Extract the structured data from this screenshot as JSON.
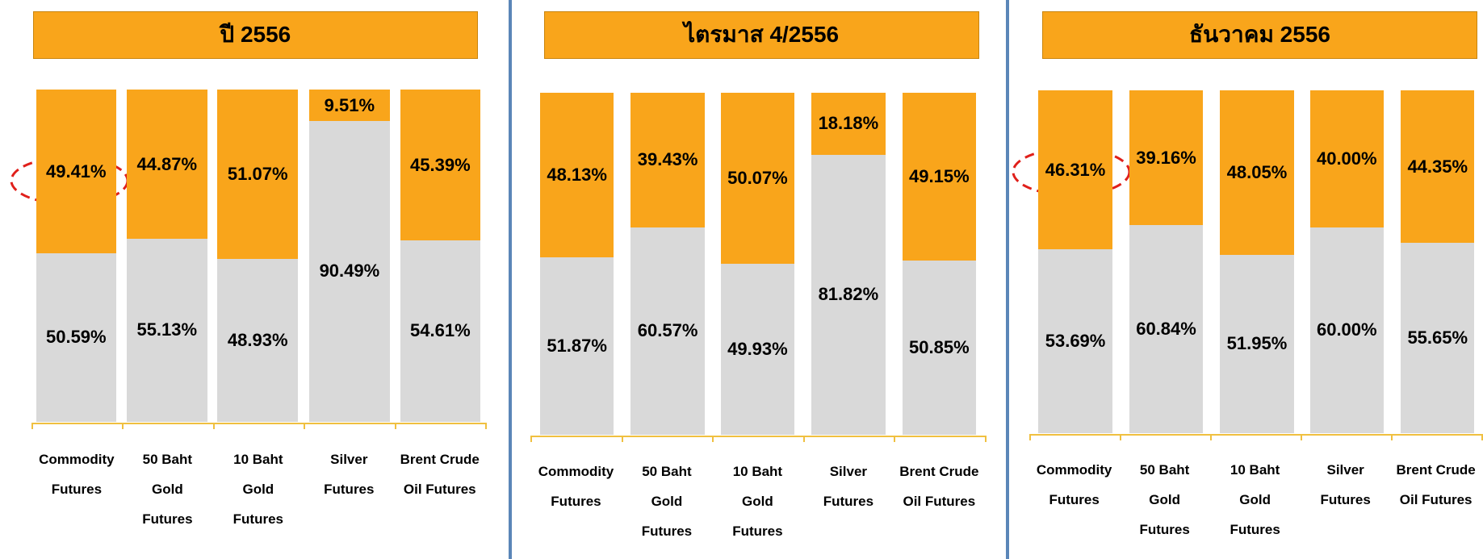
{
  "chart_data": [
    {
      "type": "bar",
      "title": "ปี 2556",
      "categories": [
        "Commodity Futures",
        "50 Baht Gold Futures",
        "10 Baht Gold Futures",
        "Silver Futures",
        "Brent Crude Oil Futures"
      ],
      "stacked": true,
      "ylim": [
        0,
        100
      ],
      "series": [
        {
          "color": "#d9d9d9",
          "values": [
            50.59,
            55.13,
            48.93,
            90.49,
            54.61
          ],
          "value_labels": [
            "50.59%",
            "55.13%",
            "48.93%",
            "90.49%",
            "54.61%"
          ]
        },
        {
          "color": "#f9a51b",
          "values": [
            49.41,
            44.87,
            51.07,
            9.51,
            45.39
          ],
          "value_labels": [
            "49.41%",
            "44.87%",
            "51.07%",
            "9.51%",
            "45.39%"
          ]
        }
      ]
    },
    {
      "type": "bar",
      "title": "ไตรมาส 4/2556",
      "categories": [
        "Commodity Futures",
        "50 Baht Gold Futures",
        "10 Baht Gold Futures",
        "Silver Futures",
        "Brent Crude Oil Futures"
      ],
      "stacked": true,
      "ylim": [
        0,
        100
      ],
      "series": [
        {
          "color": "#d9d9d9",
          "values": [
            51.87,
            60.57,
            49.93,
            81.82,
            50.85
          ],
          "value_labels": [
            "51.87%",
            "60.57%",
            "49.93%",
            "81.82%",
            "50.85%"
          ]
        },
        {
          "color": "#f9a51b",
          "values": [
            48.13,
            39.43,
            50.07,
            18.18,
            49.15
          ],
          "value_labels": [
            "48.13%",
            "39.43%",
            "50.07%",
            "18.18%",
            "49.15%"
          ]
        }
      ]
    },
    {
      "type": "bar",
      "title": "ธันวาคม 2556",
      "categories": [
        "Commodity Futures",
        "50 Baht Gold Futures",
        "10 Baht Gold Futures",
        "Silver Futures",
        "Brent Crude Oil Futures"
      ],
      "stacked": true,
      "ylim": [
        0,
        100
      ],
      "series": [
        {
          "color": "#d9d9d9",
          "values": [
            53.69,
            60.84,
            51.95,
            60.0,
            55.65
          ],
          "value_labels": [
            "53.69%",
            "60.84%",
            "51.95%",
            "60.00%",
            "55.65%"
          ]
        },
        {
          "color": "#f9a51b",
          "values": [
            46.31,
            39.16,
            48.05,
            40.0,
            44.35
          ],
          "value_labels": [
            "46.31%",
            "39.16%",
            "48.05%",
            "40.00%",
            "44.35%"
          ]
        }
      ]
    }
  ]
}
